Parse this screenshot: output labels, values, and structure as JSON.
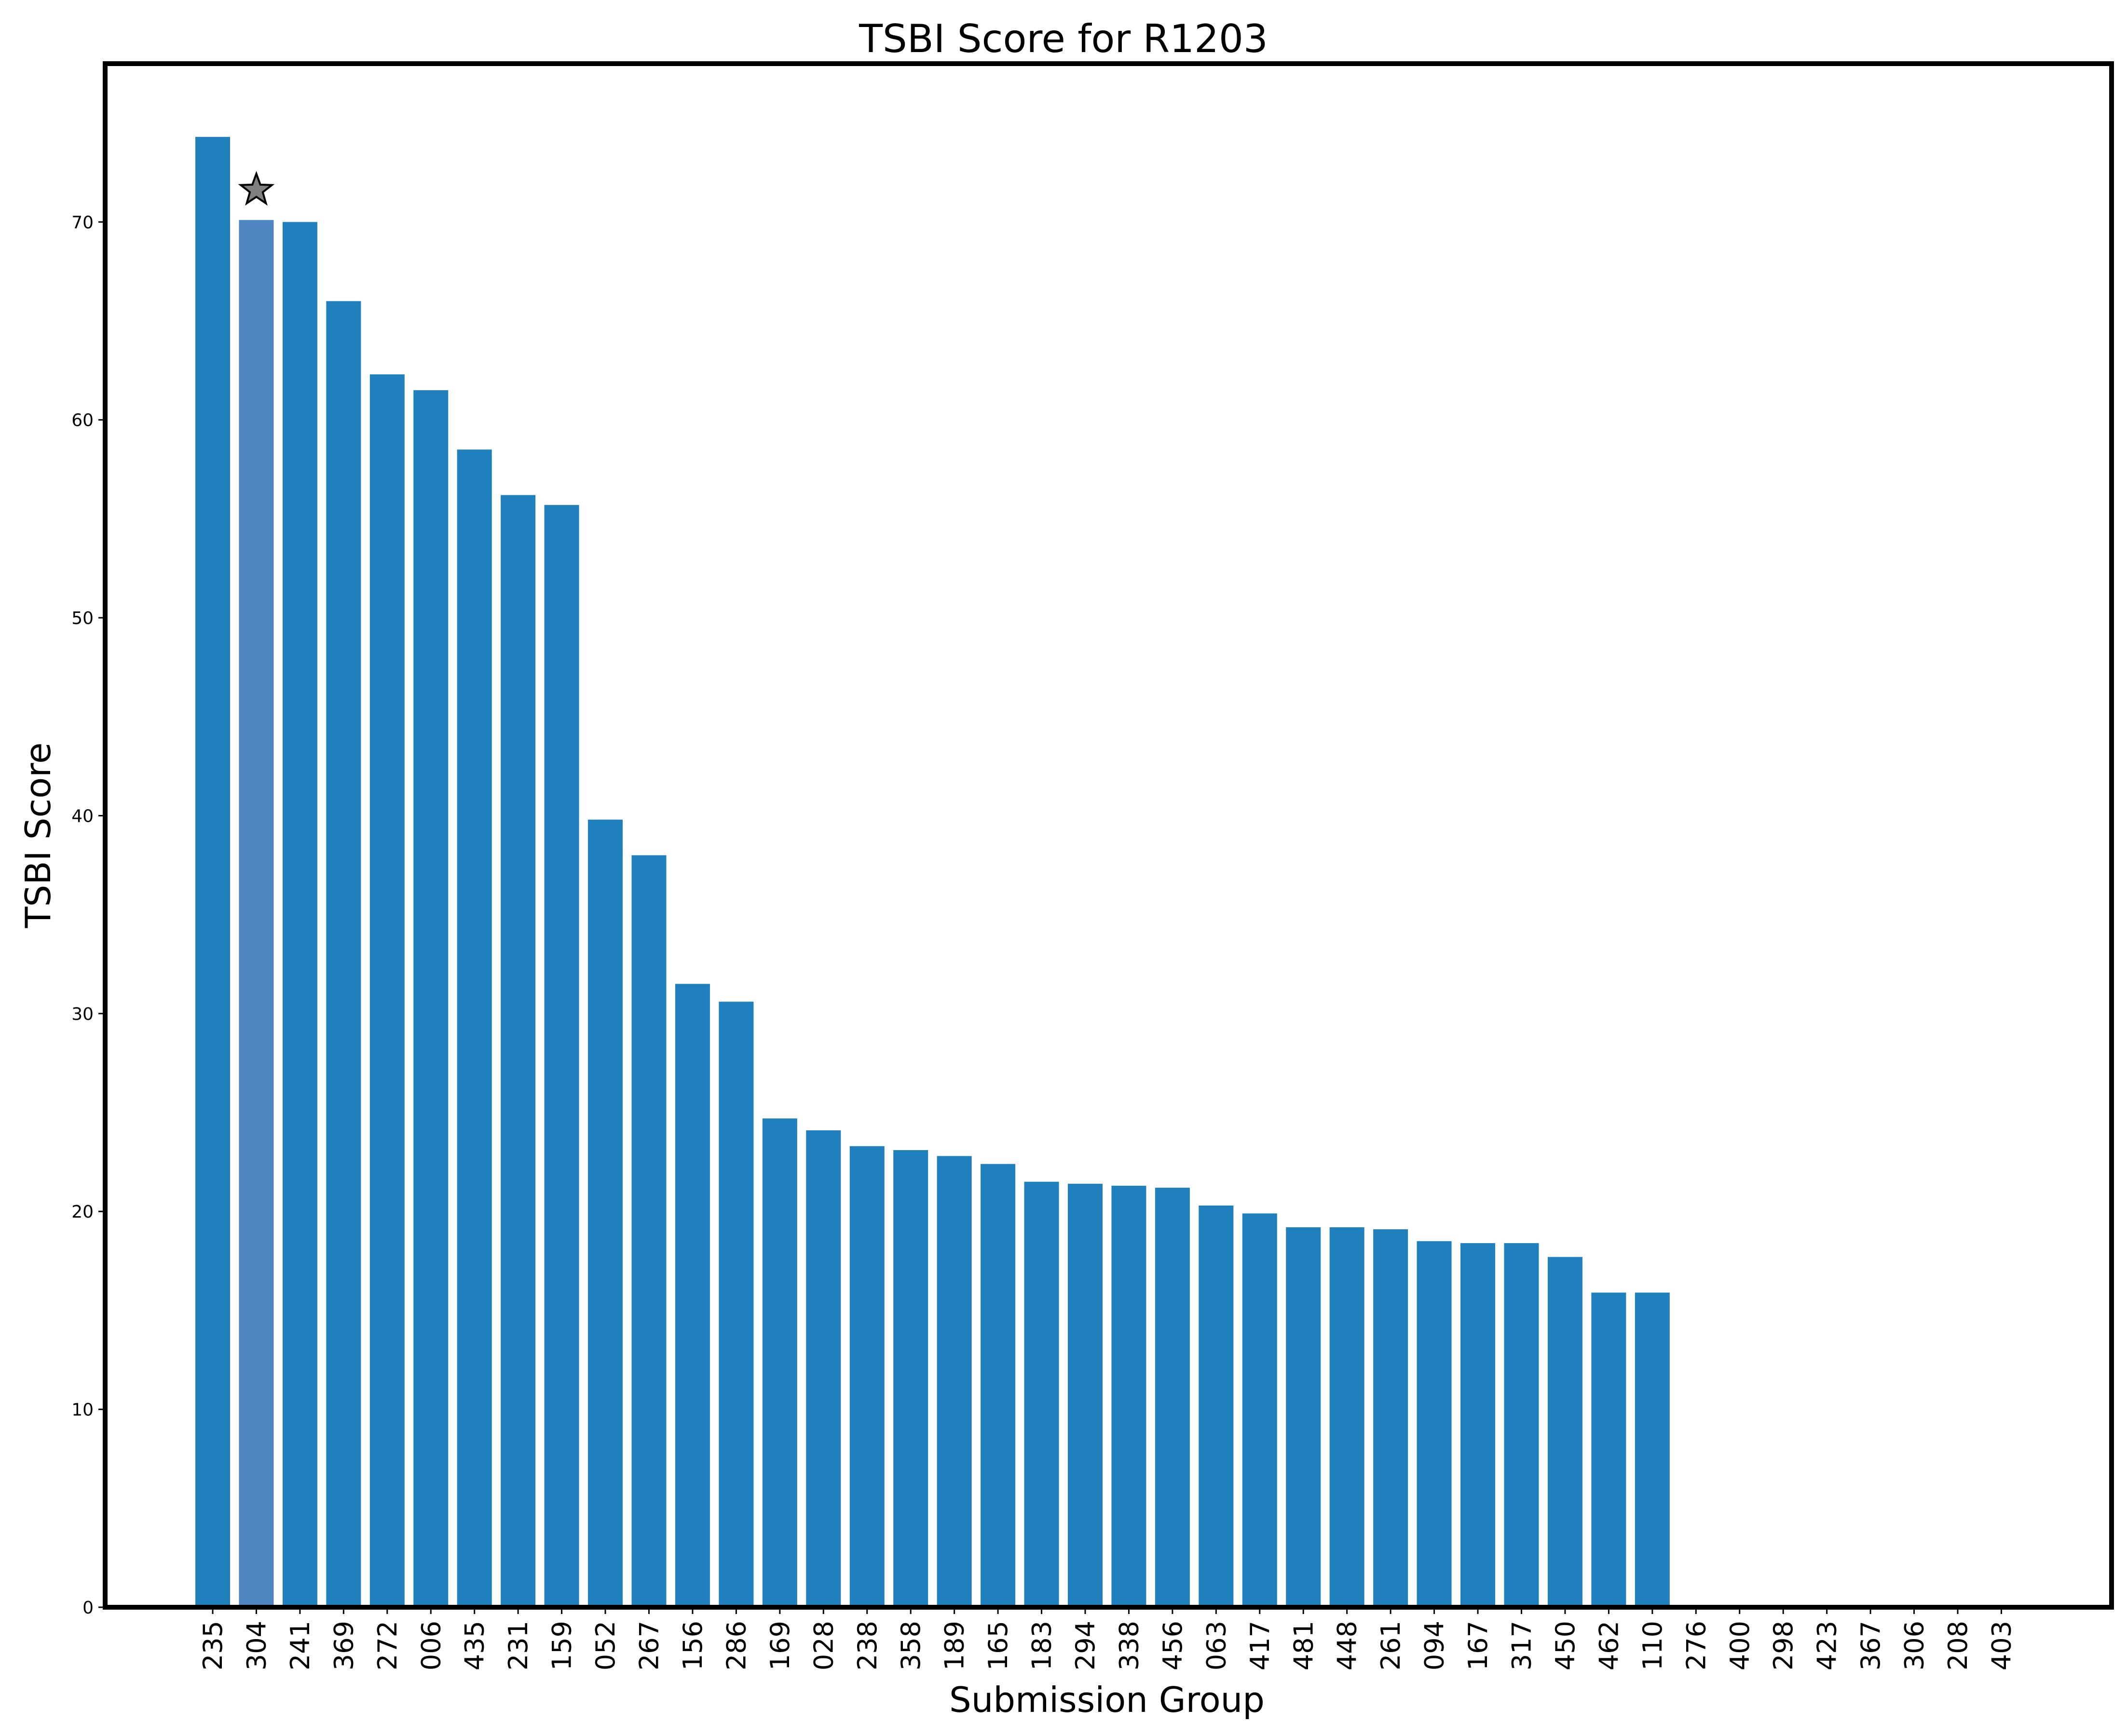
{
  "chart_data": {
    "type": "bar",
    "title": "TSBI Score for R1203",
    "xlabel": "Submission Group",
    "ylabel": "TSBI Score",
    "ylim": [
      0,
      78
    ],
    "yticks": [
      0,
      10,
      20,
      30,
      40,
      50,
      60,
      70
    ],
    "grid": false,
    "categories": [
      "235",
      "304",
      "241",
      "369",
      "272",
      "006",
      "435",
      "231",
      "159",
      "052",
      "267",
      "156",
      "286",
      "169",
      "028",
      "238",
      "358",
      "189",
      "165",
      "183",
      "294",
      "338",
      "456",
      "063",
      "417",
      "481",
      "448",
      "261",
      "094",
      "167",
      "317",
      "450",
      "462",
      "110",
      "276",
      "400",
      "298",
      "423",
      "367",
      "306",
      "208",
      "403"
    ],
    "values": [
      74.3,
      70.1,
      70.0,
      66.0,
      62.3,
      61.5,
      58.5,
      56.2,
      55.7,
      39.8,
      38.0,
      31.5,
      30.6,
      24.7,
      24.1,
      23.3,
      23.1,
      22.8,
      22.4,
      21.5,
      21.4,
      21.3,
      21.2,
      20.3,
      19.9,
      19.2,
      19.2,
      19.1,
      18.5,
      18.4,
      18.4,
      17.7,
      15.9,
      15.9,
      0,
      0,
      0,
      0,
      0,
      0,
      0,
      0
    ],
    "highlight": {
      "category": "304",
      "marker": "star"
    },
    "colors": {
      "bar": "#1f80bd",
      "highlight_bar": "#4f86c1",
      "star_fill": "#808080",
      "star_edge": "#000000",
      "frame": "#000000"
    }
  }
}
